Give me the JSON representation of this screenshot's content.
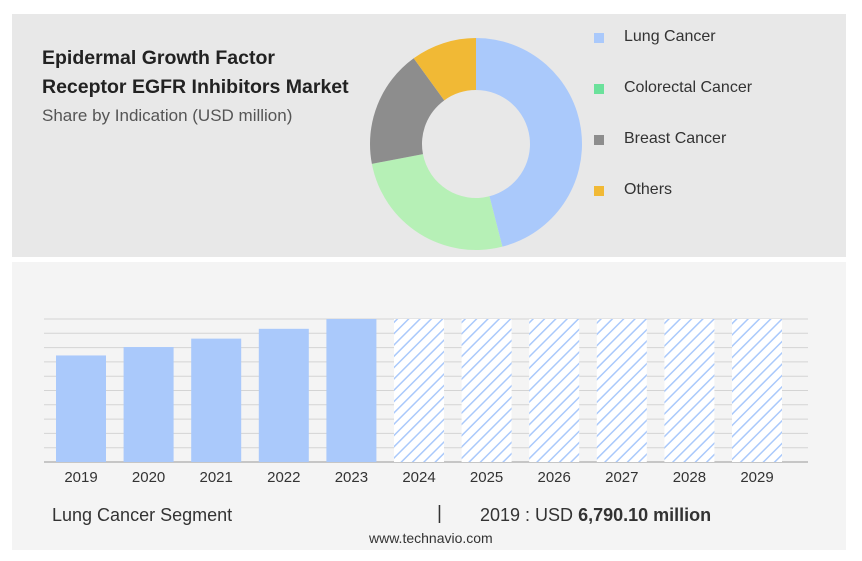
{
  "title_line1": "Epidermal Growth Factor",
  "title_line2": "Receptor EGFR Inhibitors Market",
  "subtitle": "Share by Indication (USD million)",
  "colors": {
    "lung": "#aac9fb",
    "colorectal": "#b6f0b6",
    "breast": "#8d8d8d",
    "others": "#f1b935",
    "forecast_hatch": "#aac9fb"
  },
  "legend": [
    {
      "label": "Lung Cancer",
      "color": "#aac9fb"
    },
    {
      "label": "Colorectal Cancer",
      "color": "#6be19b"
    },
    {
      "label": "Breast Cancer",
      "color": "#8d8d8d"
    },
    {
      "label": "Others",
      "color": "#f1b935"
    }
  ],
  "chart_data": [
    {
      "type": "pie",
      "donut": true,
      "categories": [
        "Lung Cancer",
        "Colorectal Cancer",
        "Breast Cancer",
        "Others"
      ],
      "values": [
        46,
        26,
        18,
        10
      ]
    },
    {
      "type": "bar",
      "categories": [
        "2019",
        "2020",
        "2021",
        "2022",
        "2023",
        "2024",
        "2025",
        "2026",
        "2027",
        "2028",
        "2029"
      ],
      "values": [
        76,
        82,
        88,
        95,
        102,
        102,
        102,
        102,
        102,
        102,
        102
      ],
      "forecast_from": "2024",
      "ylim": [
        0,
        102
      ],
      "grid": true
    }
  ],
  "footer": {
    "segment": "Lung Cancer Segment",
    "separator": "|",
    "year_prefix": "2019 : USD",
    "value": "6,790.10 million"
  },
  "source": "www.technavio.com"
}
